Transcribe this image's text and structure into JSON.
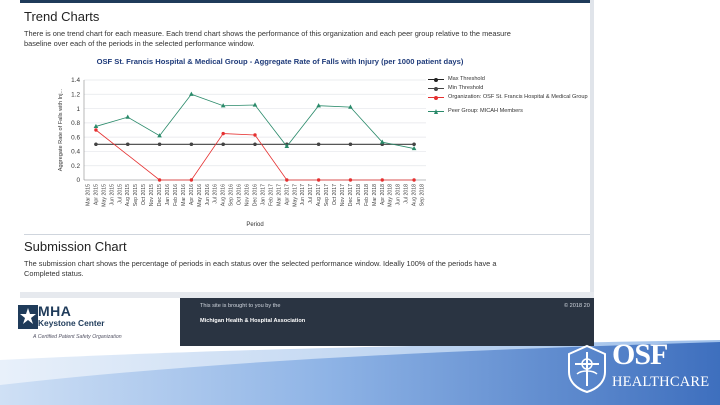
{
  "trend_section": {
    "title": "Trend Charts",
    "description_line1": "There is one trend chart for each measure.  Each trend chart shows the performance of this organization and each peer group relative to the measure",
    "description_line2": "baseline over each of the periods in the selected performance window."
  },
  "chart_data": {
    "type": "line",
    "title": "OSF St. Francis Hospital & Medical Group - Aggregate Rate of Falls with Injury (per 1000 patient days)",
    "xlabel": "Period",
    "ylabel": "Aggregate Rate of Falls with Inj...",
    "ylim": [
      0,
      1.4
    ],
    "yticks": [
      "0",
      "0.2",
      "0.4",
      "0.6",
      "0.8",
      "1",
      "1.2",
      "1.4"
    ],
    "categories": [
      "Mar 2015",
      "Apr 2015",
      "May 2015",
      "Jun 2015",
      "Jul 2015",
      "Aug 2015",
      "Sep 2015",
      "Oct 2015",
      "Nov 2015",
      "Dec 2015",
      "Jan 2016",
      "Feb 2016",
      "Mar 2016",
      "Apr 2016",
      "May 2016",
      "Jun 2016",
      "Jul 2016",
      "Aug 2016",
      "Sep 2016",
      "Oct 2016",
      "Nov 2016",
      "Dec 2016",
      "Jan 2017",
      "Feb 2017",
      "Mar 2017",
      "Apr 2017",
      "May 2017",
      "Jun 2017",
      "Jul 2017",
      "Aug 2017",
      "Sep 2017",
      "Oct 2017",
      "Nov 2017",
      "Dec 2017",
      "Jan 2018",
      "Feb 2018",
      "Mar 2018",
      "Apr 2018",
      "May 2018",
      "Jun 2018",
      "Jul 2018",
      "Aug 2018",
      "Sep 2018"
    ],
    "series": [
      {
        "name": "Max Threshold",
        "color": "#222222",
        "marker": "circle",
        "points": [
          [
            1,
            0.5
          ],
          [
            5,
            0.5
          ],
          [
            9,
            0.5
          ],
          [
            13,
            0.5
          ],
          [
            17,
            0.5
          ],
          [
            21,
            0.5
          ],
          [
            25,
            0.5
          ],
          [
            29,
            0.5
          ],
          [
            33,
            0.5
          ],
          [
            37,
            0.5
          ],
          [
            41,
            0.5
          ]
        ]
      },
      {
        "name": "Min Threshold",
        "color": "#444444",
        "marker": "circle",
        "points": [
          [
            1,
            0.5
          ],
          [
            5,
            0.5
          ],
          [
            9,
            0.5
          ],
          [
            13,
            0.5
          ],
          [
            17,
            0.5
          ],
          [
            21,
            0.5
          ],
          [
            25,
            0.5
          ],
          [
            29,
            0.5
          ],
          [
            33,
            0.5
          ],
          [
            37,
            0.5
          ],
          [
            41,
            0.5
          ]
        ]
      },
      {
        "name": "Organization: OSF St. Francis Hospital & Medical Group",
        "color": "#e53030",
        "marker": "circle",
        "points": [
          [
            1,
            0.7
          ],
          [
            9,
            0
          ],
          [
            13,
            0
          ],
          [
            17,
            0.65
          ],
          [
            21,
            0.63
          ],
          [
            25,
            0
          ],
          [
            29,
            0
          ],
          [
            33,
            0
          ],
          [
            37,
            0
          ],
          [
            41,
            0
          ]
        ]
      },
      {
        "name": "Peer Group: MICAH Members",
        "color": "#2a8a6a",
        "marker": "triangle",
        "points": [
          [
            1,
            0.75
          ],
          [
            5,
            0.88
          ],
          [
            9,
            0.62
          ],
          [
            13,
            1.2
          ],
          [
            17,
            1.04
          ],
          [
            21,
            1.05
          ],
          [
            25,
            0.47
          ],
          [
            29,
            1.04
          ],
          [
            33,
            1.02
          ],
          [
            37,
            0.53
          ],
          [
            41,
            0.44
          ]
        ]
      }
    ]
  },
  "submission_section": {
    "title": "Submission Chart",
    "description_line1": "The submission chart shows the percentage of periods in each status over the selected performance window.  Ideally 100% of the periods have a",
    "description_line2": "Completed status."
  },
  "footer": {
    "brought_by": "This site is brought to you by the",
    "association": "Michigan Health & Hospital Association",
    "copyright": "© 2018 20"
  },
  "mha_logo": {
    "name": "MHA",
    "sub": "Keystone Center",
    "tagline": "A Certified Patient Safety Organization"
  },
  "osf_logo": {
    "name": "OSF",
    "sub": "HEALTHCARE"
  },
  "colors": {
    "navy": "#1f3b5a",
    "footer_dark": "#2a3442",
    "swoosh_blue": "#5a8fd0"
  }
}
